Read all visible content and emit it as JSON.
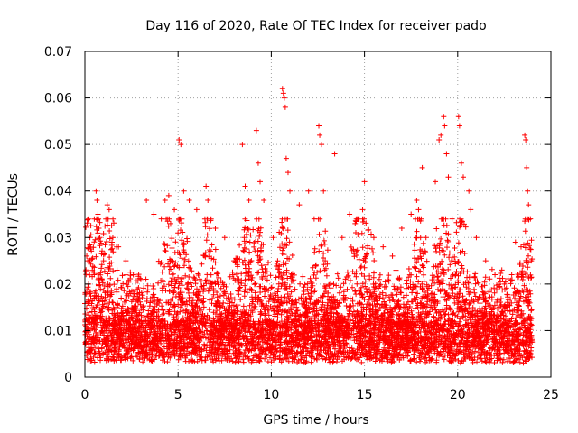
{
  "chart_data": {
    "type": "scatter",
    "title": "Day 116 of 2020, Rate Of TEC Index for receiver pado",
    "xlabel": "GPS time / hours",
    "ylabel": "ROTI / TECUs",
    "xlim": [
      0,
      25
    ],
    "ylim": [
      0,
      0.07
    ],
    "xticks": [
      0,
      5,
      10,
      15,
      20,
      25
    ],
    "xtick_labels": [
      "0",
      "5",
      "10",
      "15",
      "20",
      "25"
    ],
    "yticks": [
      0,
      0.01,
      0.02,
      0.03,
      0.04,
      0.05,
      0.06,
      0.07
    ],
    "ytick_labels": [
      "0",
      "0.01",
      "0.02",
      "0.03",
      "0.04",
      "0.05",
      "0.06",
      "0.07"
    ],
    "grid": true,
    "marker": "+",
    "series_color": "#ff0000",
    "series": [
      {
        "name": "ROTI",
        "points": [
          [
            0.1,
            0.026
          ],
          [
            0.15,
            0.025
          ],
          [
            0.2,
            0.02
          ],
          [
            0.3,
            0.018
          ],
          [
            0.5,
            0.022
          ],
          [
            0.6,
            0.04
          ],
          [
            0.65,
            0.038
          ],
          [
            0.7,
            0.035
          ],
          [
            0.75,
            0.032
          ],
          [
            0.8,
            0.03
          ],
          [
            1.0,
            0.025
          ],
          [
            1.2,
            0.037
          ],
          [
            1.3,
            0.036
          ],
          [
            1.5,
            0.03
          ],
          [
            1.8,
            0.028
          ],
          [
            2.2,
            0.025
          ],
          [
            2.6,
            0.022
          ],
          [
            3.0,
            0.021
          ],
          [
            3.3,
            0.038
          ],
          [
            3.7,
            0.035
          ],
          [
            4.1,
            0.034
          ],
          [
            4.3,
            0.038
          ],
          [
            4.5,
            0.039
          ],
          [
            4.6,
            0.033
          ],
          [
            4.8,
            0.036
          ],
          [
            5.05,
            0.051
          ],
          [
            5.15,
            0.05
          ],
          [
            5.3,
            0.04
          ],
          [
            5.6,
            0.038
          ],
          [
            6.0,
            0.036
          ],
          [
            6.5,
            0.041
          ],
          [
            6.6,
            0.038
          ],
          [
            7.0,
            0.032
          ],
          [
            7.5,
            0.03
          ],
          [
            8.0,
            0.025
          ],
          [
            8.45,
            0.05
          ],
          [
            8.6,
            0.041
          ],
          [
            8.8,
            0.038
          ],
          [
            9.2,
            0.053
          ],
          [
            9.3,
            0.046
          ],
          [
            9.4,
            0.042
          ],
          [
            9.6,
            0.038
          ],
          [
            10.1,
            0.03
          ],
          [
            10.6,
            0.062
          ],
          [
            10.65,
            0.061
          ],
          [
            10.7,
            0.06
          ],
          [
            10.75,
            0.058
          ],
          [
            10.8,
            0.047
          ],
          [
            10.9,
            0.044
          ],
          [
            11.0,
            0.04
          ],
          [
            11.5,
            0.037
          ],
          [
            12.0,
            0.04
          ],
          [
            12.3,
            0.034
          ],
          [
            12.55,
            0.054
          ],
          [
            12.6,
            0.052
          ],
          [
            12.7,
            0.05
          ],
          [
            12.8,
            0.04
          ],
          [
            13.4,
            0.048
          ],
          [
            13.8,
            0.03
          ],
          [
            14.2,
            0.035
          ],
          [
            14.5,
            0.033
          ],
          [
            14.9,
            0.036
          ],
          [
            15.0,
            0.042
          ],
          [
            15.5,
            0.03
          ],
          [
            16.0,
            0.028
          ],
          [
            16.5,
            0.026
          ],
          [
            17.0,
            0.032
          ],
          [
            17.5,
            0.035
          ],
          [
            17.8,
            0.038
          ],
          [
            17.9,
            0.036
          ],
          [
            18.1,
            0.045
          ],
          [
            18.3,
            0.03
          ],
          [
            18.8,
            0.042
          ],
          [
            19.0,
            0.051
          ],
          [
            19.1,
            0.052
          ],
          [
            19.25,
            0.056
          ],
          [
            19.3,
            0.054
          ],
          [
            19.4,
            0.048
          ],
          [
            19.5,
            0.043
          ],
          [
            19.7,
            0.034
          ],
          [
            20.05,
            0.056
          ],
          [
            20.1,
            0.054
          ],
          [
            20.2,
            0.046
          ],
          [
            20.3,
            0.043
          ],
          [
            20.6,
            0.04
          ],
          [
            20.7,
            0.036
          ],
          [
            21.0,
            0.03
          ],
          [
            21.5,
            0.025
          ],
          [
            22.0,
            0.022
          ],
          [
            22.5,
            0.02
          ],
          [
            22.9,
            0.022
          ],
          [
            23.1,
            0.029
          ],
          [
            23.4,
            0.028
          ],
          [
            23.6,
            0.052
          ],
          [
            23.65,
            0.051
          ],
          [
            23.7,
            0.045
          ],
          [
            23.75,
            0.04
          ],
          [
            23.8,
            0.037
          ],
          [
            23.9,
            0.034
          ],
          [
            23.95,
            0.025
          ]
        ]
      }
    ]
  }
}
